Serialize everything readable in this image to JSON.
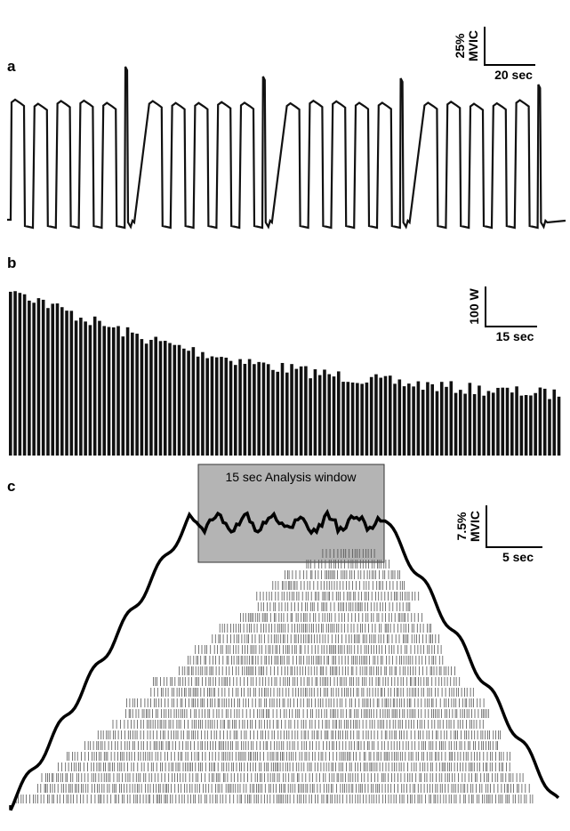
{
  "panels": [
    {
      "label": "a",
      "scale_bar": {
        "y_label": [
          "25%",
          "MVIC"
        ],
        "x_label": "20 sec"
      }
    },
    {
      "label": "b",
      "scale_bar": {
        "y_label": [
          "100 W"
        ],
        "x_label": "15 sec"
      }
    },
    {
      "label": "c",
      "scale_bar": {
        "y_label": [
          "7.5%",
          "MVIC"
        ],
        "x_label": "5 sec"
      },
      "annotation": "15 sec Analysis window"
    }
  ]
}
